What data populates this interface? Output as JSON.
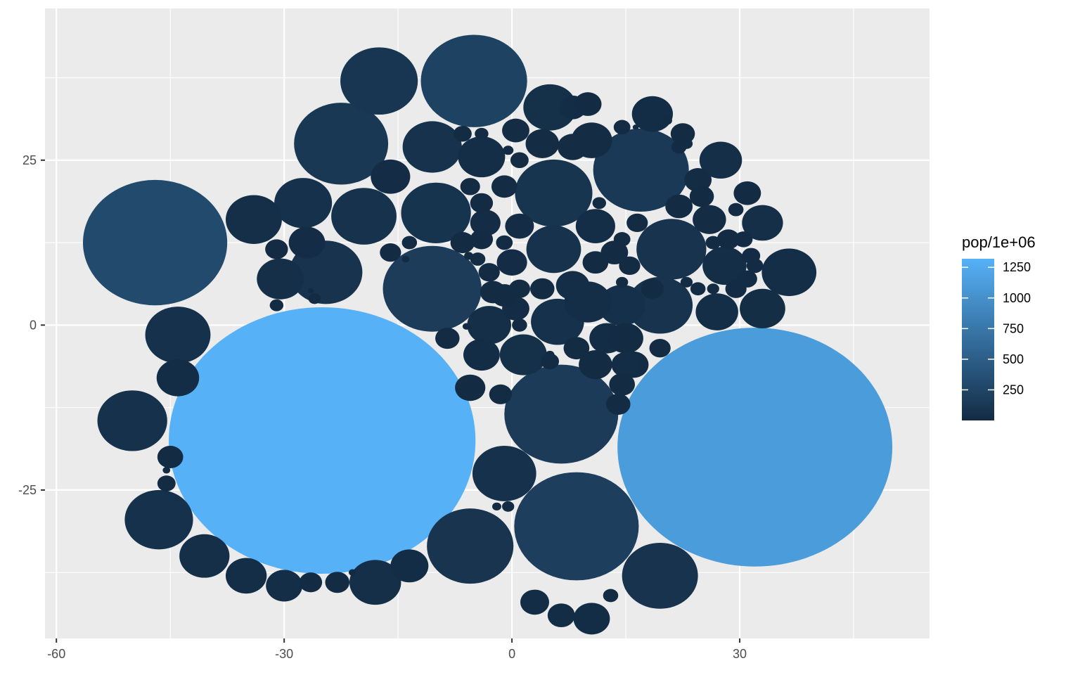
{
  "chart_data": {
    "type": "scatter",
    "subtype": "packed-circles",
    "title": "",
    "xlabel": "",
    "ylabel": "",
    "xlim": [
      -61.5,
      55
    ],
    "ylim": [
      -47.5,
      48
    ],
    "x_ticks": [
      -60,
      -30,
      0,
      30
    ],
    "y_ticks": [
      -25,
      0,
      25
    ],
    "grid": true,
    "legend": {
      "title": "pop/1e+06",
      "placement": "right",
      "type": "colorbar",
      "range": [
        0,
        1320
      ],
      "ticks": [
        250,
        500,
        750,
        1000,
        1250
      ],
      "color_low": "#132B43",
      "color_high": "#56B1F7"
    },
    "circles": [
      {
        "x": -25,
        "y": -17.5,
        "r": 20.2,
        "pop": 1319
      },
      {
        "x": 32,
        "y": -18.5,
        "r": 18.1,
        "pop": 1110
      },
      {
        "x": -47,
        "y": 12.5,
        "r": 9.5,
        "pop": 301
      },
      {
        "x": -5,
        "y": 37,
        "r": 7,
        "pop": 224
      },
      {
        "x": 8.5,
        "y": -30.5,
        "r": 8.2,
        "pop": 190
      },
      {
        "x": -10.5,
        "y": 5.5,
        "r": 6.5,
        "pop": 169
      },
      {
        "x": 6.5,
        "y": -13.5,
        "r": 7.5,
        "pop": 160
      },
      {
        "x": 17,
        "y": 23.5,
        "r": 6.3,
        "pop": 141
      },
      {
        "x": -22.5,
        "y": 27.5,
        "r": 6.2,
        "pop": 128
      },
      {
        "x": -17.5,
        "y": 37,
        "r": 5.1,
        "pop": 108
      },
      {
        "x": 5.5,
        "y": 20,
        "r": 5.1,
        "pop": 95
      },
      {
        "x": -5.5,
        "y": -33.5,
        "r": 5.7,
        "pop": 91
      },
      {
        "x": -10,
        "y": 17,
        "r": 4.6,
        "pop": 85
      },
      {
        "x": -24.5,
        "y": 8,
        "r": 4.8,
        "pop": 82
      },
      {
        "x": 19.5,
        "y": 3,
        "r": 4.3,
        "pop": 81
      },
      {
        "x": 19.5,
        "y": -38,
        "r": 5,
        "pop": 80
      },
      {
        "x": 21,
        "y": 11.5,
        "r": 4.6,
        "pop": 77
      },
      {
        "x": -19.5,
        "y": 16.5,
        "r": 4.3,
        "pop": 71
      },
      {
        "x": -10.5,
        "y": 27,
        "r": 3.9,
        "pop": 69
      },
      {
        "x": 5.5,
        "y": 11.5,
        "r": 3.6,
        "pop": 65
      },
      {
        "x": 6,
        "y": 0.5,
        "r": 3.5,
        "pop": 64
      },
      {
        "x": -44,
        "y": -1.5,
        "r": 4.3,
        "pop": 60
      },
      {
        "x": -27.5,
        "y": 18.5,
        "r": 3.8,
        "pop": 59
      },
      {
        "x": -46.5,
        "y": -29.5,
        "r": 4.5,
        "pop": 58
      },
      {
        "x": -50,
        "y": -14.5,
        "r": 4.6,
        "pop": 56
      },
      {
        "x": -1,
        "y": -22.5,
        "r": 4.2,
        "pop": 55
      },
      {
        "x": 14.5,
        "y": 3,
        "r": 3.1,
        "pop": 49
      },
      {
        "x": 1.5,
        "y": -4.5,
        "r": 3.1,
        "pop": 46
      },
      {
        "x": 5,
        "y": 33,
        "r": 3.5,
        "pop": 45
      },
      {
        "x": -3,
        "y": 0,
        "r": 2.9,
        "pop": 44
      },
      {
        "x": -18,
        "y": -39,
        "r": 3.4,
        "pop": 43
      },
      {
        "x": -40.5,
        "y": -35,
        "r": 3.3,
        "pop": 41
      },
      {
        "x": -34,
        "y": 16,
        "r": 3.7,
        "pop": 40
      },
      {
        "x": -30.5,
        "y": 7,
        "r": 3.1,
        "pop": 39
      },
      {
        "x": 33,
        "y": 15.5,
        "r": 2.7,
        "pop": 38
      },
      {
        "x": 27.5,
        "y": 25,
        "r": 2.8,
        "pop": 37
      },
      {
        "x": 36.5,
        "y": 8,
        "r": 3.6,
        "pop": 33
      },
      {
        "x": 10,
        "y": 3.5,
        "r": 3.1,
        "pop": 33
      },
      {
        "x": 11,
        "y": 15,
        "r": 2.6,
        "pop": 31
      },
      {
        "x": 27,
        "y": 2,
        "r": 2.8,
        "pop": 30
      },
      {
        "x": 28,
        "y": 9,
        "r": 2.9,
        "pop": 29
      },
      {
        "x": -35,
        "y": -38,
        "r": 2.7,
        "pop": 28
      },
      {
        "x": -30,
        "y": -39.5,
        "r": 2.4,
        "pop": 27
      },
      {
        "x": -4,
        "y": 25.5,
        "r": 3.1,
        "pop": 27
      },
      {
        "x": 8,
        "y": 6,
        "r": 2.2,
        "pop": 26
      },
      {
        "x": 33,
        "y": 2.5,
        "r": 3,
        "pop": 25
      },
      {
        "x": 18.5,
        "y": 32,
        "r": 2.7,
        "pop": 24
      },
      {
        "x": -44,
        "y": -8,
        "r": 2.8,
        "pop": 24
      },
      {
        "x": -13.5,
        "y": -36.5,
        "r": 2.5,
        "pop": 23
      },
      {
        "x": 12.5,
        "y": -2,
        "r": 2.3,
        "pop": 23
      },
      {
        "x": 8,
        "y": 33,
        "r": 1.8,
        "pop": 22
      },
      {
        "x": 3,
        "y": -42,
        "r": 1.9,
        "pop": 21
      },
      {
        "x": 6.5,
        "y": -44,
        "r": 1.8,
        "pop": 20
      },
      {
        "x": 10.5,
        "y": -44.5,
        "r": 2.4,
        "pop": 20
      },
      {
        "x": 15,
        "y": -6,
        "r": 1.9,
        "pop": 19
      },
      {
        "x": -4,
        "y": -4.5,
        "r": 2.4,
        "pop": 19
      },
      {
        "x": 10.5,
        "y": 28,
        "r": 2.7,
        "pop": 18
      },
      {
        "x": 4,
        "y": 27.5,
        "r": 2.2,
        "pop": 17
      },
      {
        "x": 8,
        "y": 27,
        "r": 2,
        "pop": 16
      },
      {
        "x": 26,
        "y": 16,
        "r": 2.2,
        "pop": 15
      },
      {
        "x": 24.5,
        "y": 22,
        "r": 1.8,
        "pop": 15
      },
      {
        "x": -16,
        "y": 22.5,
        "r": 2.6,
        "pop": 14
      },
      {
        "x": -27,
        "y": 12.5,
        "r": 2.4,
        "pop": 13
      },
      {
        "x": -3.5,
        "y": 15.5,
        "r": 2,
        "pop": 12
      },
      {
        "x": 1,
        "y": 15,
        "r": 1.9,
        "pop": 12
      },
      {
        "x": 0,
        "y": 9.5,
        "r": 2,
        "pop": 11
      },
      {
        "x": 0.5,
        "y": 2.5,
        "r": 1.8,
        "pop": 11
      },
      {
        "x": -1,
        "y": 21,
        "r": 1.7,
        "pop": 10
      },
      {
        "x": 0.5,
        "y": 29.5,
        "r": 1.8,
        "pop": 10
      },
      {
        "x": -4,
        "y": 13,
        "r": 1.5,
        "pop": 9
      },
      {
        "x": -5.5,
        "y": -9.5,
        "r": 2,
        "pop": 9
      },
      {
        "x": -1,
        "y": 4.5,
        "r": 1.7,
        "pop": 9
      },
      {
        "x": 4,
        "y": 5.5,
        "r": 1.6,
        "pop": 9
      },
      {
        "x": 16,
        "y": -6,
        "r": 2,
        "pop": 8
      },
      {
        "x": 11,
        "y": 9.5,
        "r": 1.7,
        "pop": 8
      },
      {
        "x": 13.5,
        "y": 11,
        "r": 1.8,
        "pop": 8
      },
      {
        "x": 15,
        "y": -2,
        "r": 2.3,
        "pop": 8
      },
      {
        "x": 14.5,
        "y": -9,
        "r": 1.7,
        "pop": 7
      },
      {
        "x": 11,
        "y": -6,
        "r": 2.2,
        "pop": 7
      },
      {
        "x": 8.5,
        "y": -3.5,
        "r": 1.7,
        "pop": 7
      },
      {
        "x": 18.5,
        "y": 5.5,
        "r": 1.5,
        "pop": 6
      },
      {
        "x": 19.5,
        "y": -3.5,
        "r": 1.4,
        "pop": 6
      },
      {
        "x": 15.5,
        "y": 9,
        "r": 1.4,
        "pop": 6
      },
      {
        "x": 16.5,
        "y": 15.5,
        "r": 1.4,
        "pop": 6
      },
      {
        "x": 22,
        "y": 18,
        "r": 1.8,
        "pop": 5
      },
      {
        "x": 22.5,
        "y": 29,
        "r": 1.6,
        "pop": 5
      },
      {
        "x": 25,
        "y": 19.5,
        "r": 1.6,
        "pop": 5
      },
      {
        "x": 28.5,
        "y": 13,
        "r": 1.5,
        "pop": 5
      },
      {
        "x": 31,
        "y": 20,
        "r": 1.8,
        "pop": 5
      },
      {
        "x": 29.5,
        "y": 5.5,
        "r": 1.4,
        "pop": 5
      },
      {
        "x": 31,
        "y": 7,
        "r": 1.3,
        "pop": 4
      },
      {
        "x": 31.5,
        "y": 10.5,
        "r": 1.2,
        "pop": 4
      },
      {
        "x": 32,
        "y": 9,
        "r": 1.1,
        "pop": 4
      },
      {
        "x": 30.5,
        "y": 13,
        "r": 1.2,
        "pop": 4
      },
      {
        "x": 29.5,
        "y": 17.5,
        "r": 1,
        "pop": 4
      },
      {
        "x": 26.5,
        "y": 12.5,
        "r": 1,
        "pop": 3
      },
      {
        "x": 24.5,
        "y": 5.5,
        "r": 1,
        "pop": 3
      },
      {
        "x": 26.5,
        "y": 5.5,
        "r": 0.8,
        "pop": 3
      },
      {
        "x": 23,
        "y": 6.5,
        "r": 0.8,
        "pop": 3
      },
      {
        "x": -6.5,
        "y": 29,
        "r": 1.2,
        "pop": 3
      },
      {
        "x": -4,
        "y": 29,
        "r": 0.9,
        "pop": 3
      },
      {
        "x": -5.5,
        "y": 21,
        "r": 1.3,
        "pop": 3
      },
      {
        "x": -4,
        "y": 18.5,
        "r": 1.5,
        "pop": 3
      },
      {
        "x": -6.5,
        "y": 12.5,
        "r": 1.6,
        "pop": 2
      },
      {
        "x": -4.5,
        "y": 10,
        "r": 1,
        "pop": 2
      },
      {
        "x": -3,
        "y": 8,
        "r": 1.4,
        "pop": 2
      },
      {
        "x": -1,
        "y": 12.5,
        "r": 1.1,
        "pop": 2
      },
      {
        "x": -2.5,
        "y": 5,
        "r": 1.7,
        "pop": 2
      },
      {
        "x": 1,
        "y": 5.5,
        "r": 1.4,
        "pop": 2
      },
      {
        "x": 1,
        "y": 0,
        "r": 1,
        "pop": 2
      },
      {
        "x": 1,
        "y": 25,
        "r": 1.2,
        "pop": 2
      },
      {
        "x": -0.5,
        "y": 26.5,
        "r": 0.7,
        "pop": 2
      },
      {
        "x": -8.5,
        "y": -2,
        "r": 1.6,
        "pop": 2
      },
      {
        "x": -6,
        "y": -0.2,
        "r": 0.5,
        "pop": 1
      },
      {
        "x": -16,
        "y": 11,
        "r": 1.4,
        "pop": 1
      },
      {
        "x": -13.5,
        "y": 12.5,
        "r": 1,
        "pop": 1
      },
      {
        "x": -14,
        "y": 10,
        "r": 0.5,
        "pop": 1
      },
      {
        "x": -31,
        "y": 3,
        "r": 0.9,
        "pop": 1
      },
      {
        "x": -26,
        "y": 4,
        "r": 0.8,
        "pop": 1
      },
      {
        "x": -26.5,
        "y": 5.2,
        "r": 0.4,
        "pop": 1
      },
      {
        "x": -31,
        "y": 11.5,
        "r": 1.5,
        "pop": 1
      },
      {
        "x": -45,
        "y": -20,
        "r": 1.7,
        "pop": 1
      },
      {
        "x": -45.5,
        "y": -22,
        "r": 0.5,
        "pop": 1
      },
      {
        "x": -45.5,
        "y": -24,
        "r": 1.2,
        "pop": 1
      },
      {
        "x": -26.5,
        "y": -39,
        "r": 1.5,
        "pop": 1
      },
      {
        "x": -23,
        "y": -39,
        "r": 1.6,
        "pop": 1
      },
      {
        "x": -21,
        "y": -37.5,
        "r": 0.5,
        "pop": 1
      },
      {
        "x": -0.5,
        "y": -27.5,
        "r": 0.8,
        "pop": 1
      },
      {
        "x": -2,
        "y": -27.5,
        "r": 0.6,
        "pop": 1
      },
      {
        "x": -1.5,
        "y": -10.5,
        "r": 1.5,
        "pop": 1
      },
      {
        "x": -1,
        "y": -10.3,
        "r": 0.4,
        "pop": 1
      },
      {
        "x": 5,
        "y": -5.5,
        "r": 1.2,
        "pop": 1
      },
      {
        "x": 5,
        "y": -4.5,
        "r": 0.6,
        "pop": 1
      },
      {
        "x": 13,
        "y": -41,
        "r": 1,
        "pop": 1
      },
      {
        "x": 14,
        "y": -12,
        "r": 1.6,
        "pop": 1
      },
      {
        "x": 14,
        "y": -12.2,
        "r": 0.4,
        "pop": 1
      },
      {
        "x": 13.7,
        "y": -11.5,
        "r": 0.3,
        "pop": 1
      },
      {
        "x": 14.5,
        "y": -9.5,
        "r": 0.6,
        "pop": 1
      },
      {
        "x": 14.5,
        "y": 6.5,
        "r": 0.8,
        "pop": 1
      },
      {
        "x": 14.5,
        "y": 13,
        "r": 1.1,
        "pop": 1
      },
      {
        "x": 11.5,
        "y": 18.5,
        "r": 0.9,
        "pop": 1
      },
      {
        "x": 14.5,
        "y": 30,
        "r": 1.1,
        "pop": 1
      },
      {
        "x": 16.3,
        "y": 30,
        "r": 0.4,
        "pop": 1
      },
      {
        "x": 10,
        "y": 33.5,
        "r": 1.8,
        "pop": 1
      },
      {
        "x": 20.5,
        "y": 31,
        "r": 0.6,
        "pop": 1
      },
      {
        "x": 22,
        "y": 27,
        "r": 1,
        "pop": 1
      },
      {
        "x": 23,
        "y": 27.5,
        "r": 0.8,
        "pop": 1
      },
      {
        "x": -5.7,
        "y": 10.5,
        "r": 0.6,
        "pop": 1
      }
    ]
  }
}
